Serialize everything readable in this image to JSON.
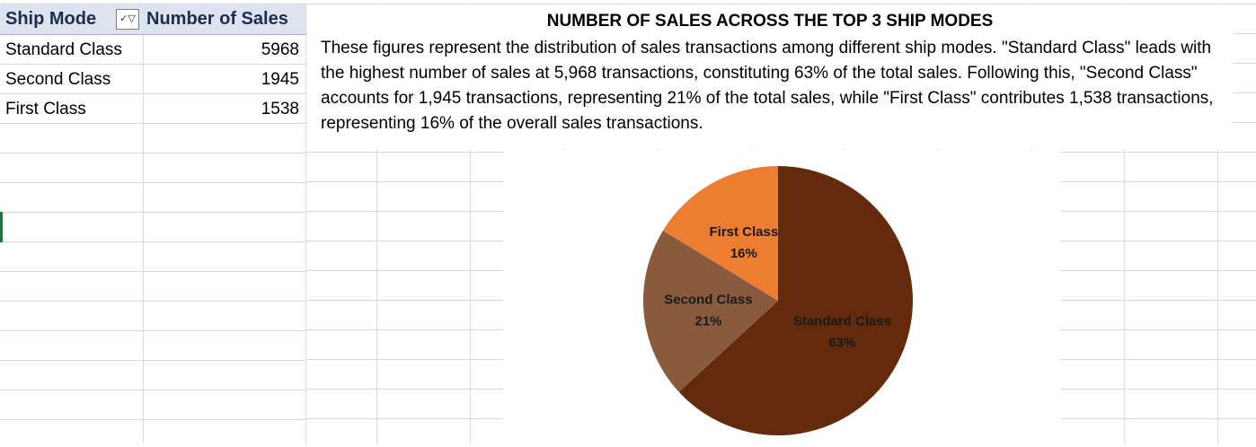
{
  "pivot": {
    "header_ship_mode": "Ship Mode",
    "header_sales": "Number of Sales",
    "rows": [
      {
        "mode": "Standard Class",
        "sales": "5968"
      },
      {
        "mode": "Second Class",
        "sales": "1945"
      },
      {
        "mode": "First Class",
        "sales": "1538"
      }
    ]
  },
  "textbox": {
    "title": "NUMBER OF SALES ACROSS THE TOP 3 SHIP MODES",
    "body": "These figures represent the distribution of sales transactions among different ship modes. \"Standard Class\" leads with the highest number of sales at 5,968 transactions, constituting 63% of the total sales. Following this, \"Second Class\" accounts for 1,945 transactions, representing 21% of the total sales, while \"First Class\" contributes 1,538 transactions, representing 16% of the overall sales transactions."
  },
  "chart_data": {
    "type": "pie",
    "categories": [
      "Standard Class",
      "Second Class",
      "First Class"
    ],
    "values": [
      5968,
      1945,
      1538
    ],
    "labels": [
      "63%",
      "21%",
      "16%"
    ],
    "colors": [
      "#632b0b",
      "#8a5a3f",
      "#ed7d31"
    ]
  }
}
